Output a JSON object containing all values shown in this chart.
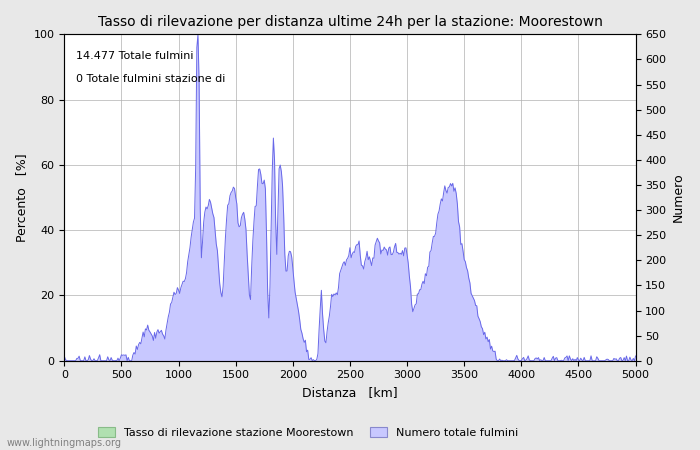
{
  "title": "Tasso di rilevazione per distanza ultime 24h per la stazione: Moorestown",
  "xlabel": "Distanza   [km]",
  "ylabel_left": "Percento   [%]",
  "ylabel_right": "Numero",
  "annotation_line1": "14.477 Totale fulmini",
  "annotation_line2": "0 Totale fulmini stazione di",
  "xlim": [
    0,
    5000
  ],
  "ylim_left": [
    0,
    100
  ],
  "ylim_right": [
    0,
    650
  ],
  "xticks": [
    0,
    500,
    1000,
    1500,
    2000,
    2500,
    3000,
    3500,
    4000,
    4500,
    5000
  ],
  "yticks_left": [
    0,
    20,
    40,
    60,
    80,
    100
  ],
  "yticks_right": [
    0,
    50,
    100,
    150,
    200,
    250,
    300,
    350,
    400,
    450,
    500,
    550,
    600,
    650
  ],
  "legend_label_green": "Tasso di rilevazione stazione Moorestown",
  "legend_label_blue": "Numero totale fulmini",
  "watermark": "www.lightningmaps.org",
  "fill_color_blue": "#c8c8ff",
  "fill_color_green": "#b0e0b0",
  "line_color": "#6868e8",
  "background_color": "#e8e8e8",
  "plot_bg_color": "#ffffff",
  "grid_color": "#b0b0b0"
}
